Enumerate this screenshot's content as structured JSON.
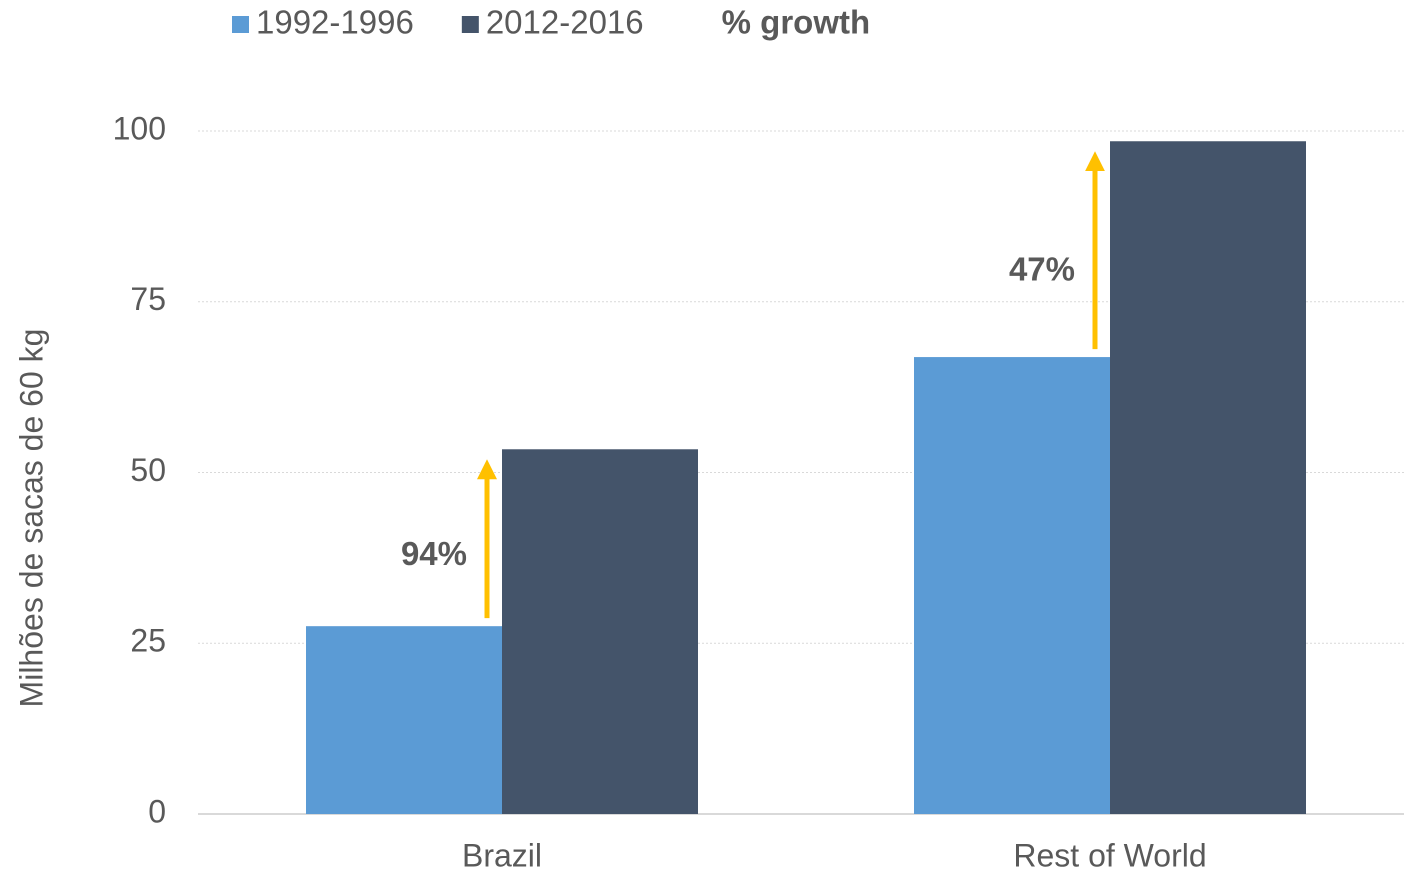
{
  "chart_data": {
    "type": "bar",
    "y_label": "Milhões de sacas de 60 kg",
    "categories": [
      "Brazil",
      "Rest of World"
    ],
    "series": [
      {
        "name": "1992-1996",
        "color": "#5b9bd5",
        "values": [
          27.5,
          66.9
        ]
      },
      {
        "name": "2012-2016",
        "color": "#44546a",
        "values": [
          53.4,
          98.5
        ]
      }
    ],
    "growth_label": "% growth",
    "annotations": [
      "94%",
      "47%"
    ],
    "annotation_color": "#ffc000",
    "ylim": [
      0,
      100
    ],
    "yticks": [
      0,
      25,
      50,
      75,
      100
    ],
    "grid": true
  }
}
